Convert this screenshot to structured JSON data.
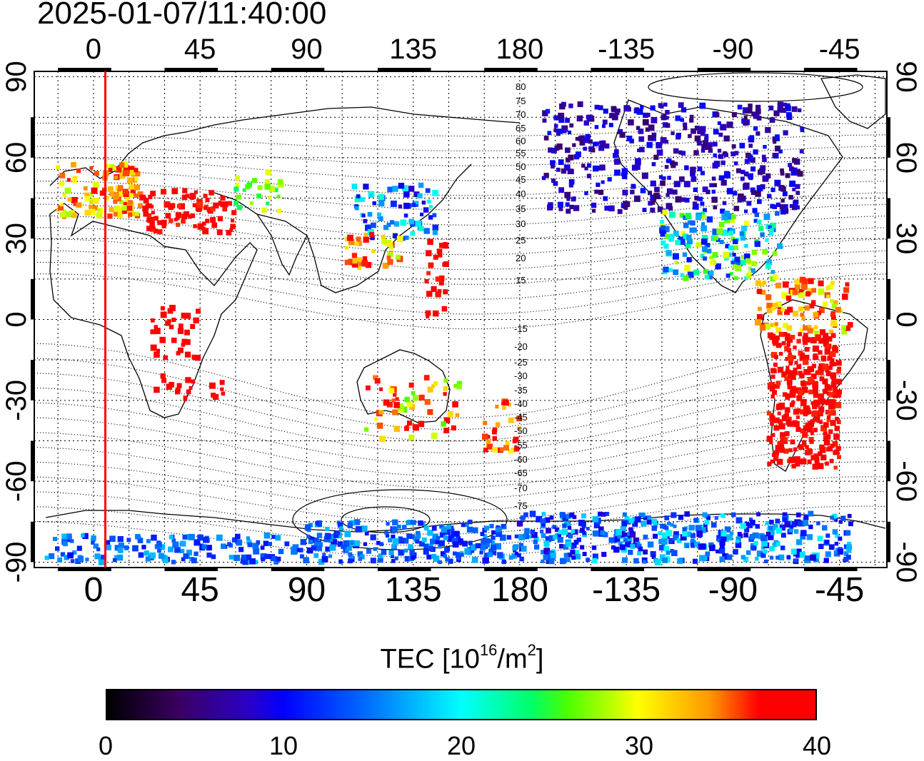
{
  "title": "2025-01-07/11:40:00",
  "map": {
    "top_lon_labels": [
      "0",
      "45",
      "90",
      "135",
      "180",
      "-135",
      "-90",
      "-45"
    ],
    "bottom_lon_labels": [
      "0",
      "45",
      "90",
      "135",
      "180",
      "-135",
      "-90",
      "-45"
    ],
    "left_lat_labels": [
      "90",
      "60",
      "30",
      "0",
      "-30",
      "-60",
      "-90"
    ],
    "right_lat_labels": [
      "90",
      "60",
      "30",
      "0",
      "-30",
      "-60",
      "-90"
    ],
    "magnetic_latitude_labels": [
      "80",
      "75",
      "70",
      "65",
      "60",
      "55",
      "50",
      "45",
      "40",
      "35",
      "30",
      "25",
      "20",
      "15",
      "-15",
      "-20",
      "-25",
      "-30",
      "-35",
      "-40",
      "-45",
      "-50",
      "-55",
      "-60",
      "-65",
      "-70",
      "-75"
    ],
    "terminator_longitude": 5
  },
  "colorbar": {
    "title_prefix": "TEC  [10",
    "title_exp": "16",
    "title_mid": "/m",
    "title_exp2": "2",
    "title_suffix": "]",
    "ticks": [
      "0",
      "10",
      "20",
      "30",
      "40"
    ],
    "min": 0,
    "max": 40
  }
}
